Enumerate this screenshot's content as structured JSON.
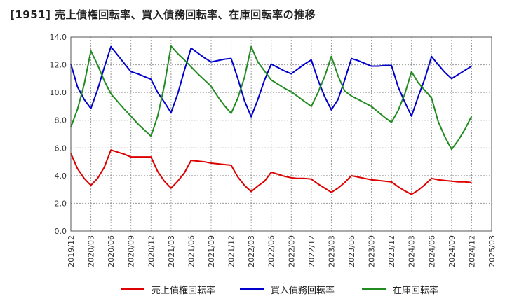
{
  "chart_data": {
    "type": "line",
    "title": "[1951]  売上債権回転率、買入債務回転率、在庫回転率の推移",
    "xlabel": "",
    "ylabel": "",
    "ylim": [
      0,
      14
    ],
    "yticks": [
      "0.0",
      "2.0",
      "4.0",
      "6.0",
      "8.0",
      "10.0",
      "12.0",
      "14.0"
    ],
    "grid": true,
    "legend_position": "bottom",
    "x": [
      "2019/12",
      "2020/01",
      "2020/02",
      "2020/03",
      "2020/04",
      "2020/05",
      "2020/06",
      "2020/07",
      "2020/08",
      "2020/09",
      "2020/10",
      "2020/11",
      "2020/12",
      "2021/01",
      "2021/02",
      "2021/03",
      "2021/04",
      "2021/05",
      "2021/06",
      "2021/07",
      "2021/08",
      "2021/09",
      "2021/10",
      "2021/11",
      "2021/12",
      "2022/01",
      "2022/02",
      "2022/03",
      "2022/04",
      "2022/05",
      "2022/06",
      "2022/07",
      "2022/08",
      "2022/09",
      "2022/10",
      "2022/11",
      "2022/12",
      "2023/01",
      "2023/02",
      "2023/03",
      "2023/04",
      "2023/05",
      "2023/06",
      "2023/07",
      "2023/08",
      "2023/09",
      "2023/10",
      "2023/11",
      "2023/12",
      "2024/01",
      "2024/02",
      "2024/03",
      "2024/04",
      "2024/05",
      "2024/06",
      "2024/07",
      "2024/08",
      "2024/09",
      "2024/10",
      "2024/11",
      "2024/12"
    ],
    "xticks": [
      "2019/12",
      "2020/03",
      "2020/06",
      "2020/09",
      "2020/12",
      "2021/03",
      "2021/06",
      "2021/09",
      "2021/12",
      "2022/03",
      "2022/06",
      "2022/09",
      "2022/12",
      "2023/03",
      "2023/06",
      "2023/09",
      "2023/12",
      "2024/03",
      "2024/06",
      "2024/09",
      "2024/12",
      "2025/03"
    ],
    "series": [
      {
        "name": "売上債権回転率",
        "color": "#dd0000",
        "values": [
          5.6,
          4.5,
          3.8,
          3.3,
          3.8,
          4.6,
          5.85,
          5.7,
          5.55,
          5.35,
          5.35,
          5.35,
          5.35,
          4.3,
          3.6,
          3.1,
          3.6,
          4.2,
          5.1,
          5.05,
          5.0,
          4.9,
          4.85,
          4.8,
          4.75,
          3.9,
          3.3,
          2.85,
          3.25,
          3.6,
          4.25,
          4.1,
          3.95,
          3.85,
          3.8,
          3.8,
          3.75,
          3.4,
          3.1,
          2.8,
          3.1,
          3.5,
          4.0,
          3.9,
          3.8,
          3.7,
          3.65,
          3.6,
          3.55,
          3.2,
          2.9,
          2.65,
          2.95,
          3.35,
          3.8,
          3.7,
          3.65,
          3.6,
          3.55,
          3.55,
          3.5
        ]
      },
      {
        "name": "買入債務回転率",
        "color": "#0000cc",
        "values": [
          12.05,
          10.4,
          9.5,
          8.85,
          10.2,
          11.8,
          13.3,
          12.7,
          12.1,
          11.5,
          11.35,
          11.15,
          10.95,
          10.0,
          9.3,
          8.55,
          9.9,
          11.6,
          13.2,
          12.85,
          12.5,
          12.2,
          12.3,
          12.4,
          12.45,
          11.0,
          9.4,
          8.25,
          9.5,
          10.9,
          12.05,
          11.8,
          11.55,
          11.35,
          11.7,
          12.05,
          12.35,
          10.9,
          9.7,
          8.75,
          9.5,
          10.9,
          12.45,
          12.3,
          12.1,
          11.9,
          11.9,
          11.95,
          11.95,
          10.4,
          9.3,
          8.3,
          9.7,
          11.0,
          12.6,
          12.0,
          11.45,
          11.0,
          11.3,
          11.6,
          11.9
        ]
      },
      {
        "name": "在庫回転率",
        "color": "#228b22",
        "values": [
          7.5,
          8.8,
          10.6,
          13.0,
          12.0,
          10.85,
          9.9,
          9.35,
          8.8,
          8.3,
          7.75,
          7.3,
          6.85,
          8.3,
          10.5,
          13.35,
          12.8,
          12.35,
          11.85,
          11.35,
          10.9,
          10.45,
          9.7,
          9.05,
          8.5,
          9.6,
          11.1,
          13.3,
          12.2,
          11.55,
          10.9,
          10.6,
          10.3,
          10.05,
          9.7,
          9.35,
          9.0,
          10.0,
          11.15,
          12.6,
          11.2,
          10.1,
          9.75,
          9.5,
          9.25,
          9.0,
          8.6,
          8.2,
          7.85,
          8.7,
          9.9,
          11.5,
          10.7,
          10.15,
          9.6,
          7.9,
          6.8,
          5.9,
          6.55,
          7.35,
          8.3
        ]
      }
    ]
  }
}
